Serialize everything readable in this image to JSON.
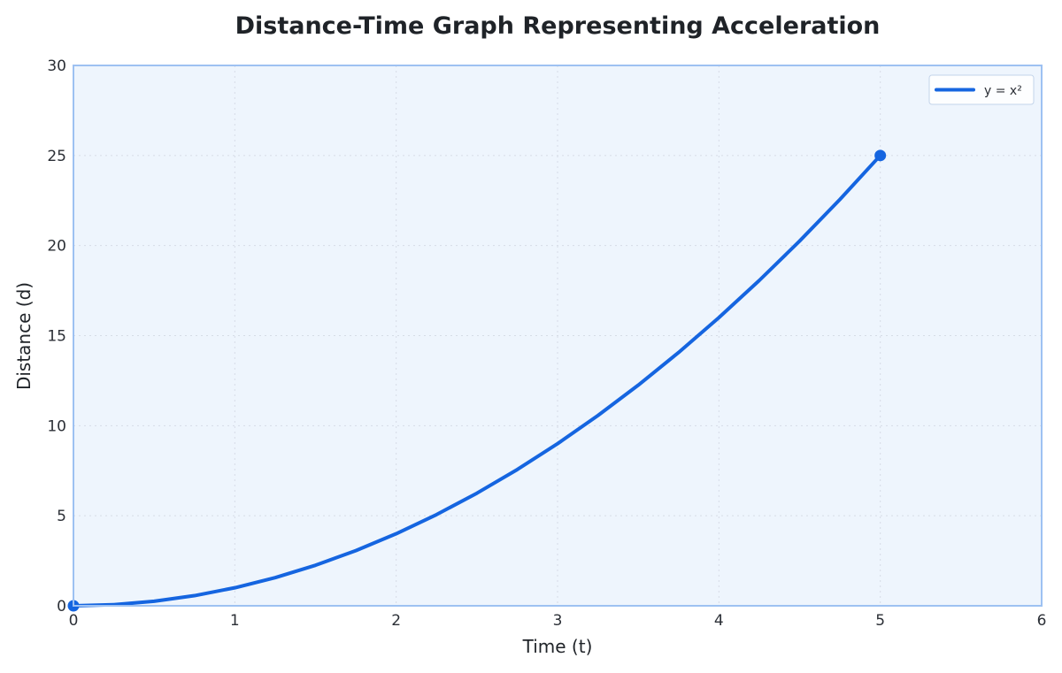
{
  "chart_data": {
    "type": "line",
    "title": "Distance-Time Graph Representing Acceleration",
    "xlabel": "Time (t)",
    "ylabel": "Distance (d)",
    "xlim": [
      0,
      6
    ],
    "ylim": [
      0,
      30
    ],
    "xticks": [
      0,
      1,
      2,
      3,
      4,
      5,
      6
    ],
    "yticks": [
      0,
      5,
      10,
      15,
      20,
      25,
      30
    ],
    "grid": true,
    "legend_position": "top-right",
    "series": [
      {
        "name": "y = x²",
        "color": "#1565e0",
        "x": [
          0,
          0.25,
          0.5,
          0.75,
          1,
          1.25,
          1.5,
          1.75,
          2,
          2.25,
          2.5,
          2.75,
          3,
          3.25,
          3.5,
          3.75,
          4,
          4.25,
          4.5,
          4.75,
          5
        ],
        "y": [
          0,
          0.0625,
          0.25,
          0.5625,
          1,
          1.5625,
          2.25,
          3.0625,
          4,
          5.0625,
          6.25,
          7.5625,
          9,
          10.5625,
          12.25,
          14.0625,
          16,
          18.0625,
          20.25,
          22.5625,
          25
        ]
      }
    ],
    "highlighted_points": [
      {
        "x": 0,
        "y": 0
      },
      {
        "x": 5,
        "y": 25
      }
    ],
    "colors": {
      "plot_background": "#eef5fd",
      "plot_border": "#9dc1f2",
      "line": "#1565e0"
    }
  }
}
